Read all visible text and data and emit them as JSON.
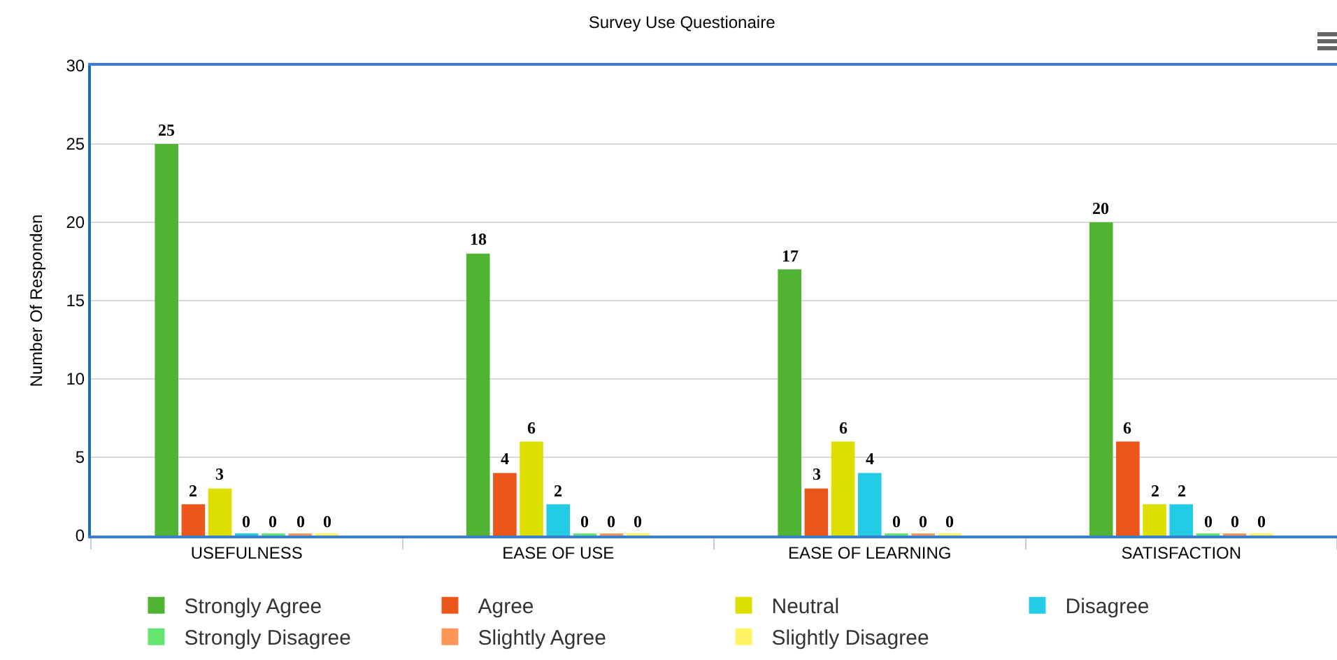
{
  "chart_data": {
    "type": "bar",
    "title": "Survey Use Questionaire",
    "ylabel": "Number Of Responden",
    "categories": [
      "USEFULNESS",
      "EASE OF USE",
      "EASE OF LEARNING",
      "SATISFACTION"
    ],
    "series": [
      {
        "name": "Strongly Agree",
        "color": "#50b432",
        "values": [
          25,
          18,
          17,
          20
        ]
      },
      {
        "name": "Agree",
        "color": "#ed561b",
        "values": [
          2,
          4,
          3,
          6
        ]
      },
      {
        "name": "Neutral",
        "color": "#dddf00",
        "values": [
          3,
          6,
          6,
          2
        ]
      },
      {
        "name": "Disagree",
        "color": "#24cbe5",
        "values": [
          0,
          2,
          4,
          2
        ]
      },
      {
        "name": "Strongly Disagree",
        "color": "#64e572",
        "values": [
          0,
          0,
          0,
          0
        ]
      },
      {
        "name": "Slightly Agree",
        "color": "#ff9655",
        "values": [
          0,
          0,
          0,
          0
        ]
      },
      {
        "name": "Slightly Disagree",
        "color": "#fff263",
        "values": [
          0,
          0,
          0,
          0
        ]
      }
    ],
    "ylim": [
      0,
      30
    ],
    "yticks": [
      0,
      5,
      10,
      15,
      20,
      25,
      30
    ],
    "grid": "y",
    "legend": "bottom",
    "data_labels": true
  }
}
